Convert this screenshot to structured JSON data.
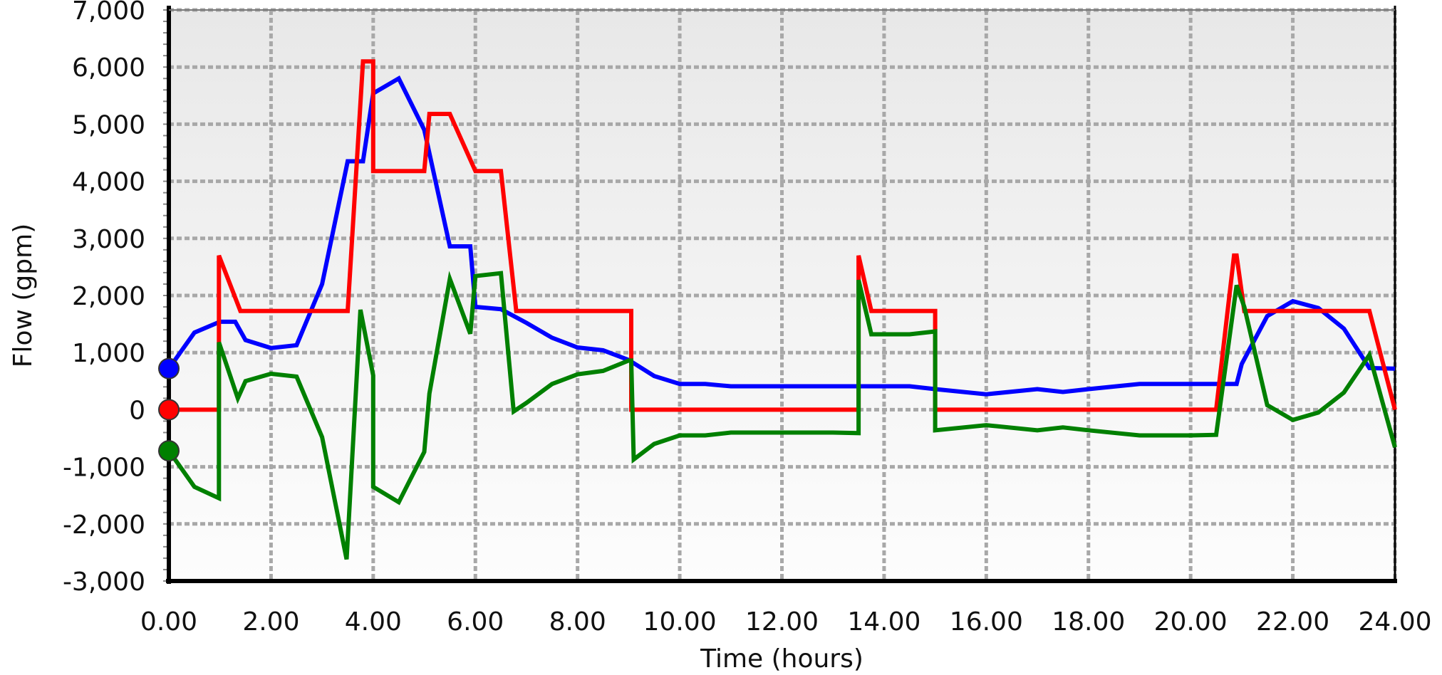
{
  "chart_data": {
    "type": "line",
    "xlabel": "Time (hours)",
    "ylabel": "Flow (gpm)",
    "xlim": [
      0,
      24
    ],
    "ylim": [
      -3000,
      7000
    ],
    "x_ticks": [
      "0.00",
      "2.00",
      "4.00",
      "6.00",
      "8.00",
      "10.00",
      "12.00",
      "14.00",
      "16.00",
      "18.00",
      "20.00",
      "22.00",
      "24.00"
    ],
    "y_ticks": [
      "7,000",
      "6,000",
      "5,000",
      "4,000",
      "3,000",
      "2,000",
      "1,000",
      "0",
      "-1,000",
      "-2,000",
      "-3,000"
    ],
    "grid": true,
    "legend": "none",
    "background": "light gray gradient",
    "series": [
      {
        "color": "#0000ff",
        "marker_at_start": true,
        "x": [
          0,
          0.5,
          1.0,
          1.3,
          1.5,
          2.0,
          2.5,
          3.0,
          3.5,
          3.6,
          3.8,
          4.0,
          4.5,
          5.0,
          5.5,
          5.9,
          6.0,
          6.5,
          7.0,
          7.5,
          8.0,
          8.5,
          9.0,
          9.5,
          10.0,
          10.5,
          11.0,
          12.0,
          13.0,
          14.0,
          14.5,
          15.0,
          16.0,
          17.0,
          17.5,
          18.0,
          19.0,
          20.0,
          20.5,
          20.9,
          21.0,
          21.5,
          22.0,
          22.5,
          23.0,
          23.5,
          24.0
        ],
        "y": [
          720,
          1350,
          1540,
          1540,
          1220,
          1080,
          1130,
          2200,
          4350,
          4350,
          4350,
          5540,
          5800,
          4900,
          2860,
          2860,
          1800,
          1760,
          1520,
          1260,
          1090,
          1040,
          870,
          590,
          450,
          450,
          410,
          410,
          410,
          410,
          410,
          360,
          270,
          360,
          310,
          360,
          450,
          450,
          450,
          450,
          800,
          1640,
          1900,
          1780,
          1420,
          730,
          720
        ]
      },
      {
        "color": "#ff0000",
        "marker_at_start": true,
        "x": [
          0,
          0.98,
          0.98,
          1.4,
          2.0,
          3.0,
          3.5,
          3.8,
          3.8,
          4.0,
          4.0,
          4.5,
          5.0,
          5.1,
          5.5,
          6.0,
          6.5,
          6.8,
          7.0,
          8.0,
          9.0,
          9.05,
          9.05,
          10.0,
          12.0,
          13.5,
          13.5,
          13.75,
          14.0,
          15.0,
          15.0,
          16.0,
          18.0,
          20.0,
          20.5,
          20.85,
          20.9,
          21.05,
          21.5,
          22.0,
          23.0,
          23.5,
          24.0
        ],
        "y": [
          0,
          0,
          2700,
          1730,
          1730,
          1730,
          1730,
          6100,
          6100,
          6100,
          4180,
          4180,
          4180,
          5180,
          5180,
          4180,
          4180,
          1730,
          1730,
          1730,
          1730,
          1730,
          0,
          0,
          0,
          0,
          2700,
          1730,
          1730,
          1730,
          0,
          0,
          0,
          0,
          0,
          2700,
          2700,
          1730,
          1730,
          1730,
          1730,
          1730,
          0
        ]
      },
      {
        "color": "#008000",
        "marker_at_start": true,
        "x": [
          0,
          0.5,
          0.98,
          0.98,
          1.35,
          1.5,
          2.0,
          2.5,
          3.0,
          3.48,
          3.75,
          4.0,
          4.0,
          4.5,
          5.0,
          5.1,
          5.5,
          5.9,
          6.0,
          6.5,
          6.75,
          7.0,
          7.5,
          8.0,
          8.5,
          9.0,
          9.05,
          9.1,
          9.5,
          10.0,
          10.5,
          11.0,
          12.0,
          13.0,
          13.5,
          13.5,
          13.75,
          14.0,
          14.5,
          15.0,
          15.0,
          16.0,
          17.0,
          17.5,
          18.0,
          19.0,
          20.0,
          20.5,
          20.9,
          21.05,
          21.5,
          22.0,
          22.5,
          23.0,
          23.5,
          24.0
        ],
        "y": [
          -720,
          -1350,
          -1550,
          1180,
          200,
          500,
          630,
          580,
          -480,
          -2620,
          1750,
          600,
          -1350,
          -1620,
          -740,
          280,
          2290,
          1330,
          2340,
          2390,
          -30,
          120,
          450,
          620,
          680,
          860,
          860,
          -870,
          -600,
          -450,
          -450,
          -400,
          -400,
          -400,
          -410,
          2270,
          1320,
          1320,
          1320,
          1370,
          -360,
          -270,
          -360,
          -310,
          -360,
          -450,
          -450,
          -440,
          2180,
          1800,
          80,
          -180,
          -50,
          300,
          960,
          -660
        ]
      }
    ]
  }
}
